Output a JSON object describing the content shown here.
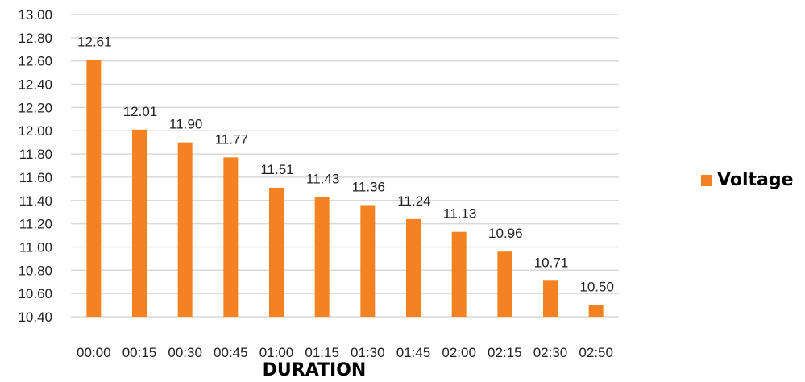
{
  "chart_data": {
    "type": "bar",
    "categories": [
      "00:00",
      "00:15",
      "00:30",
      "00:45",
      "01:00",
      "01:15",
      "01:30",
      "01:45",
      "02:00",
      "02:15",
      "02:30",
      "02:50"
    ],
    "series": [
      {
        "name": "Voltage",
        "values": [
          12.61,
          12.01,
          11.9,
          11.77,
          11.51,
          11.43,
          11.36,
          11.24,
          11.13,
          10.96,
          10.71,
          10.5
        ],
        "color": "#F58220"
      }
    ],
    "data_labels": [
      "12.61",
      "12.01",
      "11.90",
      "11.77",
      "11.51",
      "11.43",
      "11.36",
      "11.24",
      "11.13",
      "10.96",
      "10.71",
      "10.50"
    ],
    "title": "",
    "xlabel": "DURATION",
    "ylabel": "",
    "ylim": [
      10.4,
      13.0
    ],
    "y_ticks": [
      "13.00",
      "12.80",
      "12.60",
      "12.40",
      "12.20",
      "12.00",
      "11.80",
      "11.60",
      "11.40",
      "11.20",
      "11.00",
      "10.80",
      "10.60",
      "10.40"
    ],
    "grid": true,
    "legend_position": "right"
  }
}
